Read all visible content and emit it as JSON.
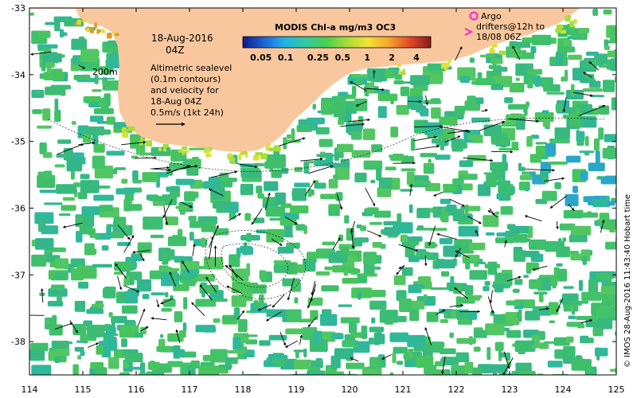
{
  "map": {
    "date": "18-Aug-2016",
    "time": "04Z",
    "scale_label": "200m",
    "annotation_lines": [
      "Altimetric sealevel",
      "(0.1m contours)",
      "and velocity for",
      "18-Aug 04Z",
      "0.5m/s (1kt 24h)"
    ],
    "argo_line1": "Argo",
    "argo_line2": "drifters@12h to",
    "argo_line3": "18/08 06Z",
    "credit": "© IMOS 28-Aug-2016 11:43:40 Hobart time",
    "colors": {
      "land": "#f9c79d",
      "ocean": "#ffffff",
      "chl_green": "#3fbf6a",
      "chl_teal": "#2fb89a",
      "chl_yellow": "#d8e13a",
      "argo_marker": "#ff22cc"
    }
  },
  "colorbar": {
    "title": "MODIS Chl-a mg/m3 OC3",
    "ticks": [
      "0.05",
      "0.1",
      "0.25",
      "0.5",
      "1",
      "2",
      "4"
    ],
    "tick_values": [
      0.05,
      0.1,
      0.25,
      0.5,
      1,
      2,
      4
    ],
    "range": [
      0.03,
      6
    ],
    "scale": "log",
    "colors": [
      "#0a1a8c",
      "#1f63d8",
      "#20b3e6",
      "#34c9a1",
      "#49cf53",
      "#a8dd3a",
      "#f3e232",
      "#f5a42a",
      "#e2472a",
      "#8a1a1a"
    ]
  },
  "axes": {
    "x_ticks": [
      "114",
      "115",
      "116",
      "117",
      "118",
      "119",
      "120",
      "121",
      "122",
      "123",
      "124",
      "125"
    ],
    "x_values": [
      114,
      115,
      116,
      117,
      118,
      119,
      120,
      121,
      122,
      123,
      124,
      125
    ],
    "y_ticks": [
      "-33",
      "-34",
      "-35",
      "-36",
      "-37",
      "-38"
    ],
    "y_values": [
      -33,
      -34,
      -35,
      -36,
      -37,
      -38
    ],
    "lon_range": [
      114,
      125
    ],
    "lat_range": [
      -38.5,
      -33
    ]
  }
}
